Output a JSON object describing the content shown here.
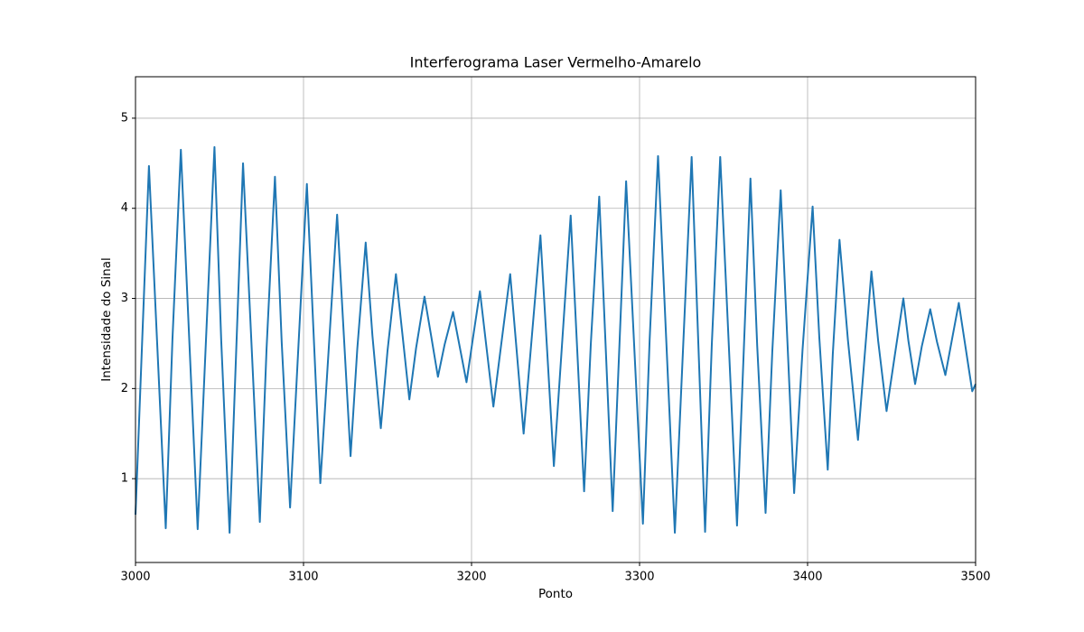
{
  "chart_data": {
    "type": "line",
    "title": "Interferograma Laser Vermelho-Amarelo",
    "x_label": "Ponto",
    "y_label": "Intensidade do Sinal",
    "xlim": [
      3000,
      3500
    ],
    "ylim": [
      0.07,
      5.46
    ],
    "xticks": [
      3000,
      3100,
      3200,
      3300,
      3400,
      3500
    ],
    "yticks": [
      1,
      2,
      3,
      4,
      5
    ],
    "grid": true,
    "x": [
      3000,
      3004,
      3008,
      3013,
      3018,
      3022,
      3027,
      3032,
      3037,
      3042,
      3047,
      3051,
      3056,
      3060,
      3064,
      3069,
      3074,
      3078,
      3083,
      3087,
      3092,
      3097,
      3102,
      3106,
      3110,
      3115,
      3120,
      3124,
      3128,
      3132,
      3137,
      3141,
      3146,
      3150,
      3155,
      3159,
      3163,
      3167,
      3172,
      3176,
      3180,
      3184,
      3189,
      3193,
      3197,
      3201,
      3205,
      3209,
      3213,
      3218,
      3223,
      3227,
      3231,
      3236,
      3241,
      3245,
      3249,
      3254,
      3259,
      3263,
      3267,
      3271,
      3276,
      3280,
      3284,
      3288,
      3292,
      3297,
      3302,
      3306,
      3311,
      3316,
      3321,
      3326,
      3331,
      3335,
      3339,
      3343,
      3348,
      3353,
      3358,
      3362,
      3366,
      3370,
      3375,
      3379,
      3384,
      3388,
      3392,
      3397,
      3403,
      3407,
      3412,
      3415,
      3419,
      3424,
      3430,
      3434,
      3438,
      3442,
      3447,
      3452,
      3457,
      3460,
      3464,
      3468,
      3473,
      3477,
      3482,
      3486,
      3490,
      3494,
      3498,
      3500
    ],
    "series": [
      {
        "color": "#1f77b4",
        "values": [
          0.6,
          2.54,
          4.47,
          2.46,
          0.45,
          2.55,
          4.65,
          2.54,
          0.44,
          2.56,
          4.68,
          2.54,
          0.4,
          2.45,
          4.5,
          2.51,
          0.52,
          2.44,
          4.35,
          2.52,
          0.68,
          2.48,
          4.27,
          2.61,
          0.95,
          2.44,
          3.93,
          2.59,
          1.25,
          2.44,
          3.62,
          2.59,
          1.56,
          2.42,
          3.27,
          2.58,
          1.88,
          2.45,
          3.02,
          2.58,
          2.13,
          2.49,
          2.85,
          2.46,
          2.07,
          2.58,
          3.08,
          2.44,
          1.8,
          2.54,
          3.27,
          2.39,
          1.5,
          2.6,
          3.7,
          2.42,
          1.14,
          2.53,
          3.92,
          2.39,
          0.86,
          2.5,
          4.13,
          2.39,
          0.64,
          2.47,
          4.3,
          2.4,
          0.5,
          2.54,
          4.58,
          2.49,
          0.4,
          2.49,
          4.57,
          2.49,
          0.41,
          2.49,
          4.57,
          2.53,
          0.48,
          2.41,
          4.33,
          2.48,
          0.62,
          2.41,
          4.2,
          2.52,
          0.84,
          2.43,
          4.02,
          2.56,
          1.1,
          2.38,
          3.65,
          2.54,
          1.43,
          2.37,
          3.3,
          2.53,
          1.75,
          2.38,
          3.0,
          2.53,
          2.05,
          2.47,
          2.88,
          2.52,
          2.15,
          2.55,
          2.95,
          2.46,
          1.97,
          2.05
        ]
      }
    ]
  }
}
